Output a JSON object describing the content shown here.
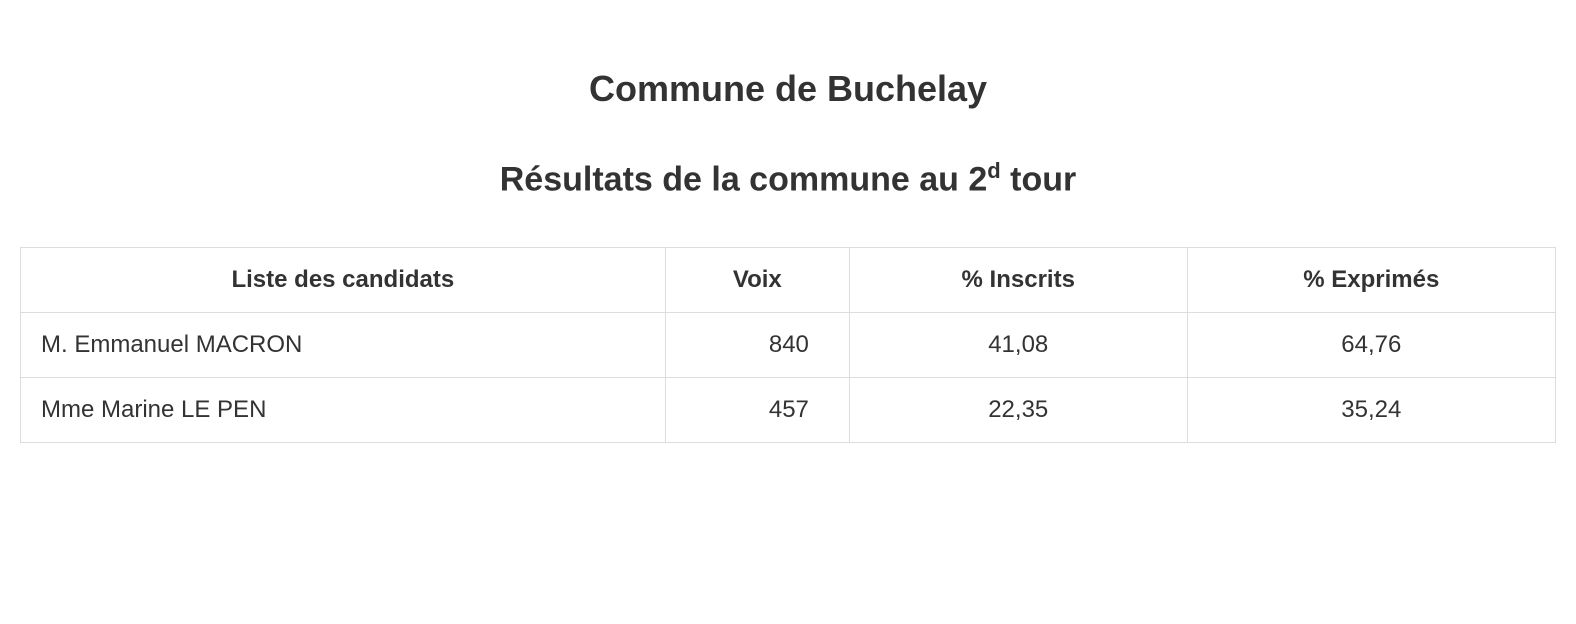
{
  "title_main": "Commune de Buchelay",
  "title_sub_prefix": "Résultats de la commune au 2",
  "title_sub_super": "d",
  "title_sub_suffix": " tour",
  "table": {
    "columns": [
      {
        "label": "Liste des candidats",
        "key": "candidate",
        "align": "left"
      },
      {
        "label": "Voix",
        "key": "voix",
        "align": "right"
      },
      {
        "label": "% Inscrits",
        "key": "inscrits",
        "align": "center"
      },
      {
        "label": "% Exprimés",
        "key": "exprimes",
        "align": "center"
      }
    ],
    "rows": [
      {
        "candidate": "M. Emmanuel MACRON",
        "voix": "840",
        "inscrits": "41,08",
        "exprimes": "64,76"
      },
      {
        "candidate": "Mme Marine LE PEN",
        "voix": "457",
        "inscrits": "22,35",
        "exprimes": "35,24"
      }
    ]
  },
  "styling": {
    "background_color": "#ffffff",
    "text_color": "#333333",
    "border_color": "#dddddd",
    "title_fontsize": 36,
    "subtitle_fontsize": 34,
    "table_fontsize": 24,
    "font_family": "-apple-system, Helvetica, Arial, sans-serif"
  }
}
